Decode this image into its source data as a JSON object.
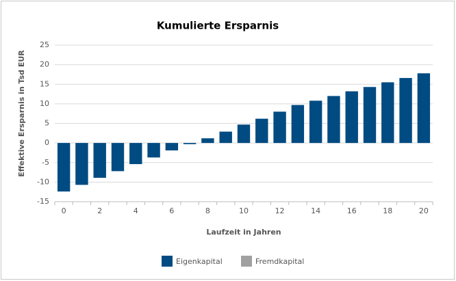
{
  "chart_data": {
    "type": "bar",
    "title": "Kumulierte Ersparnis",
    "x_label": "Laufzeit in Jahren",
    "y_label": "Effektive Ersparnis in Tsd EUR",
    "categories": [
      0,
      null,
      2,
      null,
      4,
      null,
      6,
      null,
      8,
      null,
      10,
      null,
      12,
      null,
      14,
      null,
      16,
      null,
      18,
      null,
      20
    ],
    "series": [
      {
        "name": "Eigenkapital",
        "color": "#004b82",
        "values": [
          -12.4,
          -10.7,
          -8.9,
          -7.2,
          -5.4,
          -3.7,
          -1.9,
          -0.3,
          1.2,
          2.9,
          4.7,
          6.2,
          8.0,
          9.7,
          10.8,
          12.0,
          13.2,
          14.3,
          15.5,
          16.6,
          17.8
        ]
      },
      {
        "name": "Fremdkapital",
        "color": "#a0a0a0",
        "values": [
          null,
          null,
          null,
          null,
          null,
          null,
          null,
          null,
          null,
          null,
          null,
          null,
          null,
          null,
          null,
          null,
          null,
          null,
          null,
          null,
          null
        ]
      }
    ],
    "ylim": [
      -15,
      25
    ],
    "yticks": [
      -15,
      -10,
      -5,
      0,
      5,
      10,
      15,
      20,
      25
    ],
    "grid": true,
    "legend": "bottom"
  }
}
